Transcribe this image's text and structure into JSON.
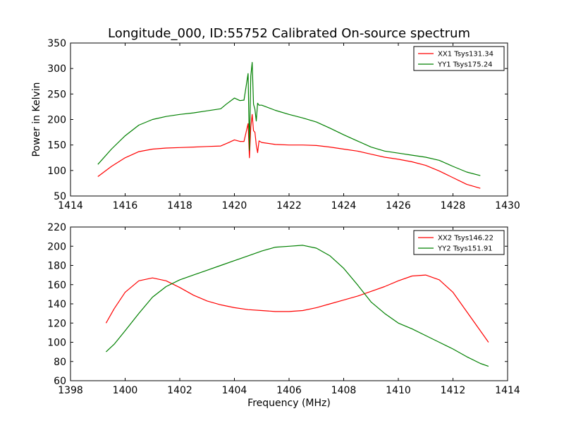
{
  "title": "Longitude_000, ID:55752 Calibrated On-source spectrum",
  "chart_data": [
    {
      "type": "line",
      "ylabel": "Power in Kelvin",
      "xlabel": "",
      "xlim": [
        1414,
        1430
      ],
      "ylim": [
        50,
        350
      ],
      "xticks": [
        1414,
        1416,
        1418,
        1420,
        1422,
        1424,
        1426,
        1428,
        1430
      ],
      "yticks": [
        50,
        100,
        150,
        200,
        250,
        300,
        350
      ],
      "legend_position": "top-right",
      "series": [
        {
          "name": "XX1 Tsys131.34",
          "color": "#ff0000",
          "x": [
            1415.0,
            1415.5,
            1416.0,
            1416.5,
            1417.0,
            1417.5,
            1418.0,
            1418.5,
            1419.0,
            1419.5,
            1419.8,
            1420.0,
            1420.2,
            1420.35,
            1420.5,
            1420.55,
            1420.6,
            1420.65,
            1420.7,
            1420.75,
            1420.8,
            1420.85,
            1420.9,
            1421.0,
            1421.5,
            1422.0,
            1422.5,
            1423.0,
            1423.5,
            1424.0,
            1424.5,
            1425.0,
            1425.5,
            1426.0,
            1426.5,
            1427.0,
            1427.5,
            1428.0,
            1428.5,
            1429.0
          ],
          "y": [
            88,
            108,
            125,
            137,
            142,
            144,
            145,
            146,
            147,
            148,
            155,
            160,
            157,
            157,
            192,
            125,
            185,
            210,
            178,
            175,
            150,
            135,
            158,
            155,
            151,
            150,
            150,
            149,
            146,
            142,
            138,
            132,
            126,
            122,
            117,
            110,
            99,
            86,
            73,
            65
          ]
        },
        {
          "name": "YY1 Tsys175.24",
          "color": "#008000",
          "x": [
            1415.0,
            1415.5,
            1416.0,
            1416.5,
            1417.0,
            1417.5,
            1418.0,
            1418.5,
            1419.0,
            1419.5,
            1419.7,
            1420.0,
            1420.2,
            1420.35,
            1420.5,
            1420.55,
            1420.6,
            1420.65,
            1420.7,
            1420.75,
            1420.8,
            1420.85,
            1420.9,
            1421.0,
            1421.5,
            1422.0,
            1422.5,
            1423.0,
            1423.5,
            1424.0,
            1424.5,
            1425.0,
            1425.5,
            1426.0,
            1426.5,
            1427.0,
            1427.5,
            1428.0,
            1428.5,
            1429.0
          ],
          "y": [
            112,
            142,
            168,
            189,
            200,
            206,
            210,
            213,
            217,
            221,
            230,
            242,
            237,
            238,
            290,
            140,
            285,
            312,
            230,
            220,
            197,
            232,
            228,
            228,
            218,
            210,
            203,
            195,
            183,
            170,
            158,
            146,
            138,
            134,
            130,
            126,
            120,
            108,
            97,
            90
          ]
        }
      ]
    },
    {
      "type": "line",
      "ylabel": "",
      "xlabel": "Frequency (MHz)",
      "xlim": [
        1398,
        1414
      ],
      "ylim": [
        60,
        220
      ],
      "xticks": [
        1398,
        1400,
        1402,
        1404,
        1406,
        1408,
        1410,
        1412,
        1414
      ],
      "yticks": [
        60,
        80,
        100,
        120,
        140,
        160,
        180,
        200,
        220
      ],
      "legend_position": "top-right",
      "series": [
        {
          "name": "XX2 Tsys146.22",
          "color": "#ff0000",
          "x": [
            1399.3,
            1399.6,
            1400.0,
            1400.5,
            1401.0,
            1401.5,
            1402.0,
            1402.5,
            1403.0,
            1403.5,
            1404.0,
            1404.5,
            1405.0,
            1405.5,
            1406.0,
            1406.5,
            1407.0,
            1407.5,
            1408.0,
            1408.5,
            1409.0,
            1409.5,
            1410.0,
            1410.5,
            1411.0,
            1411.5,
            1412.0,
            1412.5,
            1413.0,
            1413.3
          ],
          "y": [
            120,
            135,
            152,
            164,
            167,
            164,
            157,
            149,
            143,
            139,
            136,
            134,
            133,
            132,
            132,
            133,
            136,
            140,
            144,
            148,
            153,
            158,
            164,
            169,
            170,
            165,
            152,
            132,
            112,
            100
          ]
        },
        {
          "name": "YY2 Tsys151.91",
          "color": "#008000",
          "x": [
            1399.3,
            1399.6,
            1400.0,
            1400.5,
            1401.0,
            1401.5,
            1402.0,
            1402.5,
            1403.0,
            1403.5,
            1404.0,
            1404.5,
            1405.0,
            1405.5,
            1406.0,
            1406.5,
            1407.0,
            1407.5,
            1408.0,
            1408.5,
            1409.0,
            1409.5,
            1410.0,
            1410.5,
            1411.0,
            1411.5,
            1412.0,
            1412.5,
            1413.0,
            1413.3
          ],
          "y": [
            90,
            98,
            112,
            130,
            147,
            158,
            165,
            170,
            175,
            180,
            185,
            190,
            195,
            199,
            200,
            201,
            198,
            190,
            177,
            160,
            142,
            130,
            120,
            114,
            107,
            100,
            93,
            85,
            78,
            75
          ]
        }
      ]
    }
  ]
}
